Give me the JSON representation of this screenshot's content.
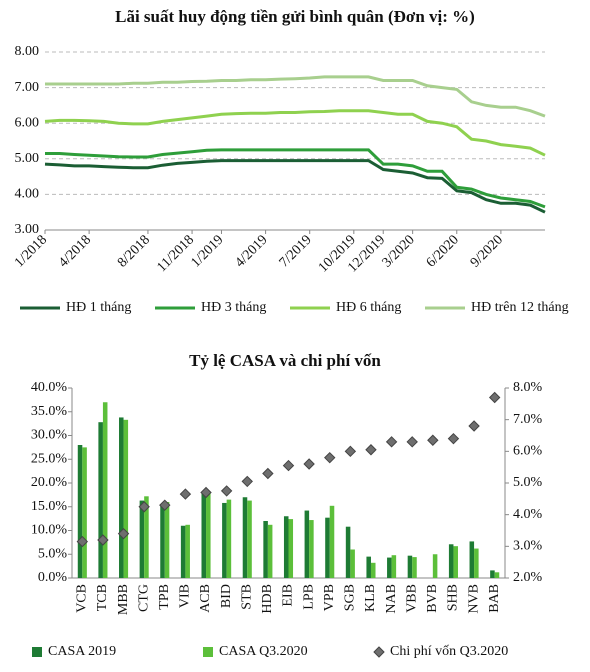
{
  "chart_data": [
    {
      "type": "line",
      "title": "Lãi suất huy động tiền gửi bình quân (Đơn vị: %)",
      "categories": [
        "1/2018",
        null,
        null,
        "4/2018",
        null,
        null,
        null,
        "8/2018",
        null,
        null,
        "11/2018",
        null,
        "1/2019",
        null,
        null,
        "4/2019",
        null,
        null,
        "7/2019",
        null,
        null,
        "10/2019",
        null,
        "12/2019",
        null,
        "3/2020",
        null,
        null,
        "6/2020",
        null,
        null,
        "9/2020",
        null,
        null,
        null
      ],
      "ylim": [
        3,
        8
      ],
      "yticks": [
        {
          "value": 3,
          "label": "3.00"
        },
        {
          "value": 4,
          "label": "4.00"
        },
        {
          "value": 5,
          "label": "5.00"
        },
        {
          "value": 6,
          "label": "6.00"
        },
        {
          "value": 7,
          "label": "7.00"
        },
        {
          "value": 8,
          "label": "8.00"
        }
      ],
      "grid": true,
      "series": [
        {
          "name": "HĐ 1 tháng",
          "color": "#1b5e34",
          "values": [
            4.85,
            4.83,
            4.8,
            4.8,
            4.78,
            4.76,
            4.75,
            4.75,
            4.82,
            4.87,
            4.9,
            4.93,
            4.95,
            4.95,
            4.95,
            4.95,
            4.95,
            4.95,
            4.95,
            4.95,
            4.95,
            4.95,
            4.95,
            4.7,
            4.65,
            4.6,
            4.47,
            4.45,
            4.1,
            4.05,
            3.85,
            3.75,
            3.75,
            3.7,
            3.5
          ]
        },
        {
          "name": "HĐ 3 tháng",
          "color": "#2e9e3a",
          "values": [
            5.15,
            5.15,
            5.12,
            5.1,
            5.08,
            5.06,
            5.05,
            5.05,
            5.12,
            5.16,
            5.2,
            5.24,
            5.25,
            5.25,
            5.25,
            5.25,
            5.25,
            5.25,
            5.25,
            5.25,
            5.25,
            5.25,
            5.25,
            4.85,
            4.85,
            4.8,
            4.65,
            4.65,
            4.2,
            4.15,
            4.0,
            3.9,
            3.85,
            3.8,
            3.65
          ]
        },
        {
          "name": "HĐ 6 tháng",
          "color": "#8fd14f",
          "values": [
            6.05,
            6.08,
            6.08,
            6.07,
            6.05,
            6.0,
            5.98,
            5.98,
            6.05,
            6.1,
            6.15,
            6.2,
            6.25,
            6.27,
            6.28,
            6.28,
            6.3,
            6.3,
            6.32,
            6.33,
            6.35,
            6.35,
            6.35,
            6.3,
            6.25,
            6.25,
            6.05,
            6.0,
            5.9,
            5.55,
            5.5,
            5.4,
            5.35,
            5.3,
            5.1
          ]
        },
        {
          "name": "HĐ trên 12 tháng",
          "color": "#a8cf8e",
          "values": [
            7.1,
            7.1,
            7.1,
            7.1,
            7.1,
            7.1,
            7.12,
            7.12,
            7.15,
            7.15,
            7.17,
            7.18,
            7.2,
            7.2,
            7.22,
            7.22,
            7.24,
            7.25,
            7.27,
            7.3,
            7.3,
            7.3,
            7.3,
            7.2,
            7.2,
            7.2,
            7.05,
            7.0,
            6.95,
            6.6,
            6.5,
            6.45,
            6.45,
            6.35,
            6.2
          ]
        }
      ]
    },
    {
      "type": "bar",
      "title": "Tỷ lệ CASA và chi phí vốn",
      "categories": [
        "VCB",
        "TCB",
        "MBB",
        "CTG",
        "TPB",
        "VIB",
        "ACB",
        "BID",
        "STB",
        "HDB",
        "EIB",
        "LPB",
        "VPB",
        "SGB",
        "KLB",
        "NAB",
        "VBB",
        "BVB",
        "SHB",
        "NVB",
        "BAB"
      ],
      "ylim": [
        0,
        40
      ],
      "yticks": [
        {
          "value": 0,
          "label": "0.0%"
        },
        {
          "value": 5,
          "label": "5.0%"
        },
        {
          "value": 10,
          "label": "10.0%"
        },
        {
          "value": 15,
          "label": "15.0%"
        },
        {
          "value": 20,
          "label": "20.0%"
        },
        {
          "value": 25,
          "label": "25.0%"
        },
        {
          "value": 30,
          "label": "30.0%"
        },
        {
          "value": 35,
          "label": "35.0%"
        },
        {
          "value": 40,
          "label": "40.0%"
        }
      ],
      "y2lim": [
        2,
        8
      ],
      "y2ticks": [
        {
          "value": 2,
          "label": "2.0%"
        },
        {
          "value": 3,
          "label": "3.0%"
        },
        {
          "value": 4,
          "label": "4.0%"
        },
        {
          "value": 5,
          "label": "5.0%"
        },
        {
          "value": 6,
          "label": "6.0%"
        },
        {
          "value": 7,
          "label": "7.0%"
        },
        {
          "value": 8,
          "label": "8.0%"
        }
      ],
      "series": [
        {
          "name": "CASA 2019",
          "color": "#1e7b34",
          "values": [
            28,
            32.8,
            33.8,
            16.3,
            15.2,
            11,
            18,
            15.8,
            17,
            12,
            13,
            14.2,
            12.7,
            10.8,
            4.5,
            4.3,
            4.7,
            null,
            7.1,
            7.7,
            1.6
          ]
        },
        {
          "name": "CASA Q3.2020",
          "color": "#5cbf3a",
          "values": [
            27.5,
            37,
            33.3,
            17.2,
            16,
            11.2,
            18,
            16.5,
            16.3,
            11.2,
            12.4,
            12.2,
            15.2,
            6,
            3.2,
            4.8,
            4.4,
            5,
            6.7,
            6.2,
            1.2
          ]
        },
        {
          "name": "Chi phí vốn Q3.2020",
          "color": "#6e6e6e",
          "type": "scatter",
          "axis": "y2",
          "values": [
            3.15,
            3.2,
            3.4,
            4.25,
            4.3,
            4.65,
            4.7,
            4.75,
            5.05,
            5.3,
            5.55,
            5.6,
            5.8,
            6.0,
            6.05,
            6.3,
            6.3,
            6.35,
            6.4,
            6.8,
            7.7
          ]
        }
      ]
    }
  ]
}
